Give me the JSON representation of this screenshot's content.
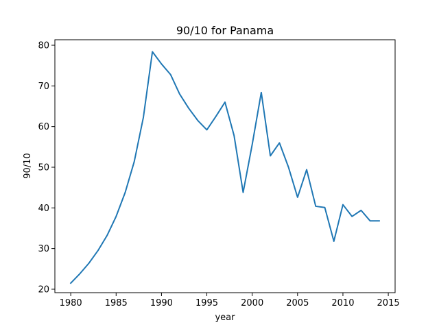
{
  "chart_data": {
    "type": "line",
    "title": "90/10 for Panama",
    "xlabel": "year",
    "ylabel": "90/10",
    "xlim": [
      1978.25,
      2015.75
    ],
    "ylim": [
      19.15,
      81.35
    ],
    "xticks": [
      1980,
      1985,
      1990,
      1995,
      2000,
      2005,
      2010,
      2015
    ],
    "yticks": [
      20,
      30,
      40,
      50,
      60,
      70,
      80
    ],
    "grid": false,
    "legend": "none",
    "series": [
      {
        "color": "#1f77b4",
        "x": [
          1980,
          1981,
          1982,
          1983,
          1984,
          1985,
          1986,
          1987,
          1988,
          1989,
          1990,
          1991,
          1992,
          1993,
          1994,
          1995,
          1996,
          1997,
          1998,
          1999,
          2000,
          2001,
          2002,
          2003,
          2004,
          2005,
          2006,
          2007,
          2008,
          2009,
          2010,
          2011,
          2012,
          2013,
          2014
        ],
        "y": [
          21.5,
          23.8,
          26.4,
          29.5,
          33.2,
          37.9,
          43.8,
          51.4,
          62.2,
          78.4,
          75.4,
          72.8,
          68.0,
          64.5,
          61.5,
          59.2,
          62.5,
          66.0,
          57.8,
          43.8,
          55.6,
          68.4,
          52.8,
          56.0,
          50.0,
          42.6,
          49.4,
          40.4,
          40.1,
          31.8,
          40.8,
          37.9,
          39.4,
          36.8,
          36.8
        ]
      }
    ]
  }
}
